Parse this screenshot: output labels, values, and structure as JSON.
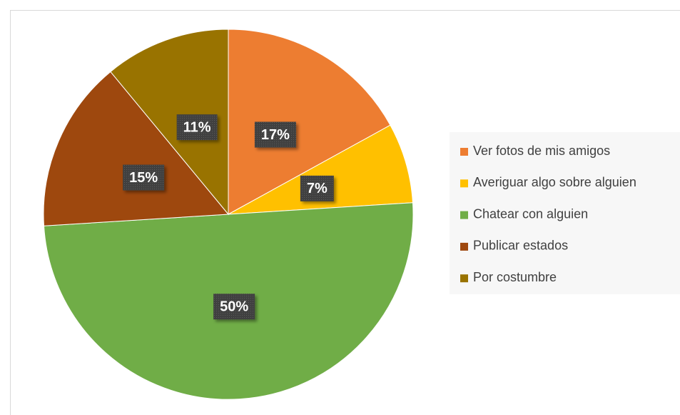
{
  "chart_data": {
    "type": "pie",
    "categories": [
      "Ver fotos de mis amigos",
      "Averiguar algo sobre alguien",
      "Chatear con alguien",
      "Publicar estados",
      "Por costumbre"
    ],
    "values": [
      17,
      7,
      50,
      15,
      11
    ],
    "value_labels": [
      "17%",
      "7%",
      "50%",
      "15%",
      "11%"
    ],
    "colors": [
      "#ED7D31",
      "#FFC000",
      "#70AD47",
      "#9E480E",
      "#997300"
    ],
    "legend": "right"
  }
}
